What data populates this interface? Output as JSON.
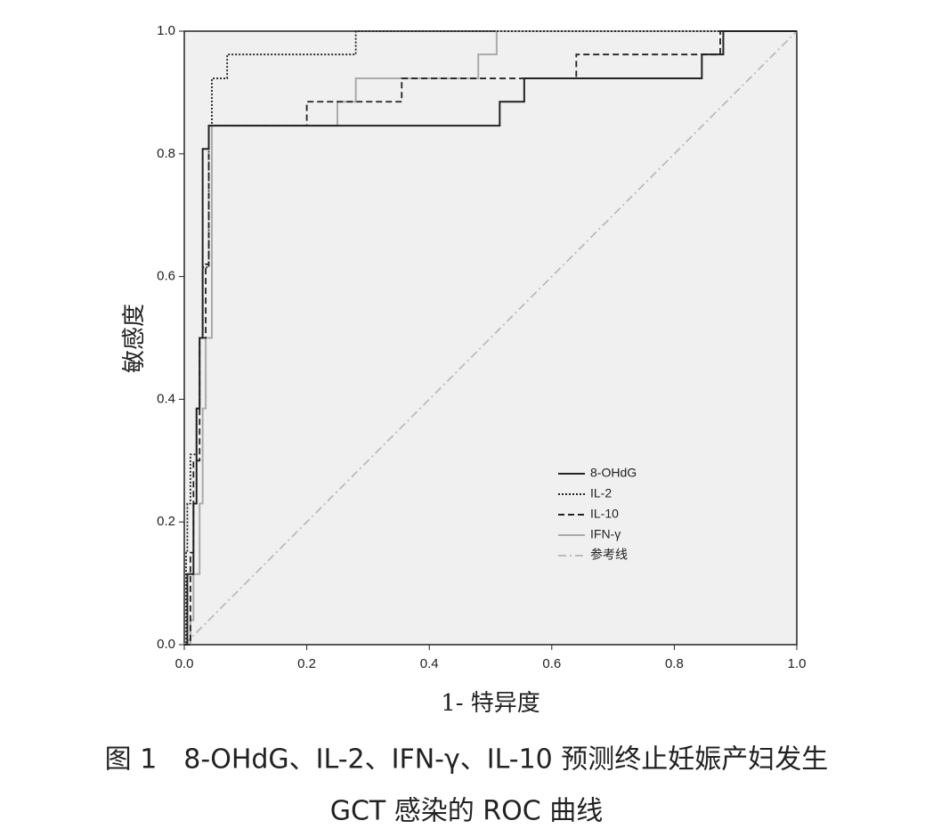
{
  "chart_data": {
    "type": "line",
    "x_label": "1- 特异度",
    "y_label": "敏感度",
    "caption": [
      "图 1　8-OHdG、IL-2、IFN-γ、IL-10 预测终止妊娠产妇发生",
      "GCT 感染的 ROC 曲线"
    ],
    "xlim": [
      0,
      1
    ],
    "ylim": [
      0,
      1
    ],
    "xticks": [
      {
        "value": 0,
        "label": "0.0"
      },
      0.2,
      0.4,
      0.6,
      0.8,
      {
        "value": 1,
        "label": "1.0"
      }
    ],
    "yticks": [
      {
        "value": 0,
        "label": "0.0"
      },
      0.2,
      0.4,
      0.6,
      0.8,
      {
        "value": 1,
        "label": "1.0"
      }
    ],
    "legend": "lower right",
    "series": [
      {
        "name": "8-OHdG",
        "color": "#222222",
        "dash": "solid",
        "x": [
          0,
          0.005,
          0.005,
          0.015,
          0.015,
          0.02,
          0.02,
          0.025,
          0.025,
          0.03,
          0.03,
          0.04,
          0.04,
          0.515,
          0.515,
          0.555,
          0.555,
          0.845,
          0.845,
          0.88,
          0.88,
          1
        ],
        "values": [
          0,
          0,
          0.115,
          0.115,
          0.23,
          0.23,
          0.385,
          0.385,
          0.5,
          0.5,
          0.808,
          0.808,
          0.846,
          0.846,
          0.885,
          0.885,
          0.923,
          0.923,
          0.962,
          0.962,
          1,
          1
        ]
      },
      {
        "name": "IL-2",
        "color": "#222222",
        "dash": "dotted",
        "x": [
          0,
          0.003,
          0.003,
          0.005,
          0.005,
          0.01,
          0.01,
          0.02,
          0.02,
          0.025,
          0.025,
          0.03,
          0.03,
          0.04,
          0.04,
          0.045,
          0.045,
          0.07,
          0.07,
          0.28,
          0.28,
          1
        ],
        "values": [
          0,
          0,
          0.15,
          0.15,
          0.23,
          0.23,
          0.31,
          0.31,
          0.385,
          0.385,
          0.5,
          0.5,
          0.615,
          0.615,
          0.846,
          0.846,
          0.923,
          0.923,
          0.962,
          0.962,
          1,
          1
        ]
      },
      {
        "name": "IL-10",
        "color": "#222222",
        "dash": "dashed",
        "x": [
          0,
          0.01,
          0.01,
          0.015,
          0.015,
          0.025,
          0.025,
          0.035,
          0.035,
          0.04,
          0.04,
          0.2,
          0.2,
          0.355,
          0.355,
          0.64,
          0.64,
          0.875,
          0.875,
          1
        ],
        "values": [
          0,
          0,
          0.15,
          0.15,
          0.3,
          0.3,
          0.5,
          0.5,
          0.62,
          0.62,
          0.846,
          0.846,
          0.885,
          0.885,
          0.923,
          0.923,
          0.962,
          0.962,
          1,
          1
        ]
      },
      {
        "name": "IFN-γ",
        "color": "#aaaaaa",
        "dash": "solid",
        "x": [
          0,
          0.01,
          0.01,
          0.015,
          0.015,
          0.025,
          0.025,
          0.03,
          0.03,
          0.035,
          0.035,
          0.045,
          0.045,
          0.25,
          0.25,
          0.28,
          0.28,
          0.48,
          0.48,
          0.51,
          0.51,
          1
        ],
        "values": [
          0,
          0,
          0.04,
          0.04,
          0.115,
          0.115,
          0.23,
          0.23,
          0.385,
          0.385,
          0.5,
          0.5,
          0.846,
          0.846,
          0.885,
          0.885,
          0.923,
          0.923,
          0.962,
          0.962,
          1,
          1
        ]
      },
      {
        "name": "参考线",
        "color": "#bbbbbb",
        "dash": "dashdot",
        "x": [
          0,
          1
        ],
        "values": [
          0,
          1
        ]
      }
    ]
  }
}
